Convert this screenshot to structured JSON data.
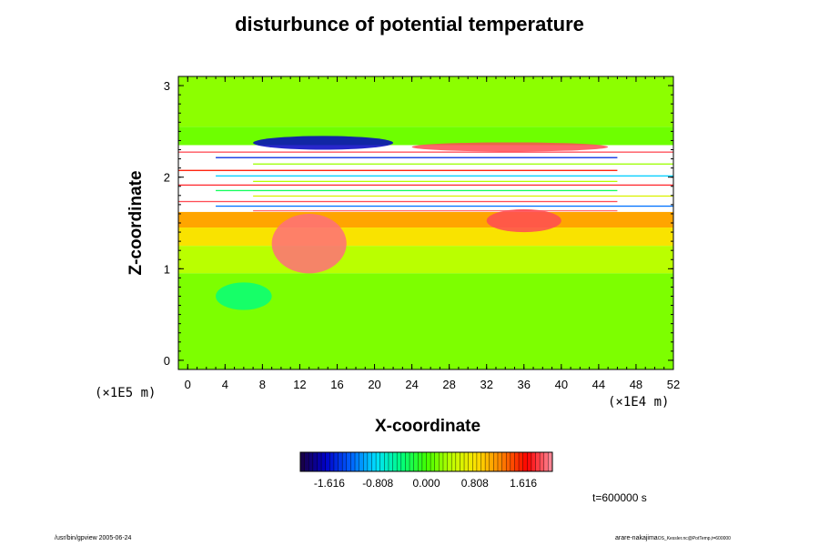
{
  "chart_data": {
    "type": "heatmap",
    "title": "disturbunce of potential temperature",
    "xlabel": "X-coordinate",
    "ylabel": "Z-coordinate",
    "x_unit": "(×1E4 m)",
    "z_unit": "(×1E5 m)",
    "xlim": [
      -1,
      52
    ],
    "ylim": [
      -0.1,
      3.1
    ],
    "x_ticks": [
      "0",
      "4",
      "8",
      "12",
      "16",
      "20",
      "24",
      "28",
      "32",
      "36",
      "40",
      "44",
      "48",
      "52"
    ],
    "y_ticks": [
      "0",
      "1",
      "2",
      "3"
    ],
    "colorbar": {
      "range": [
        -2.1,
        2.1
      ],
      "tick_labels": [
        "-1.616",
        "-0.808",
        "0.000",
        "0.808",
        "1.616"
      ],
      "tick_values": [
        -1.616,
        -0.808,
        0.0,
        0.808,
        1.616
      ]
    },
    "field_bands": [
      {
        "z": [
          2.55,
          3.1
        ],
        "value": 0.25
      },
      {
        "z": [
          2.3,
          2.55
        ],
        "value": 0.15
      },
      {
        "z": [
          1.62,
          2.35
        ],
        "value": "undefined"
      },
      {
        "z": [
          1.45,
          1.62
        ],
        "value": 1.1
      },
      {
        "z": [
          1.25,
          1.45
        ],
        "value": 0.8
      },
      {
        "z": [
          0.95,
          1.25
        ],
        "value": 0.4
      },
      {
        "z": [
          -0.1,
          0.95
        ],
        "value": 0.2
      }
    ],
    "features": [
      {
        "kind": "cold-patch",
        "x": [
          7,
          22
        ],
        "z": [
          2.3,
          2.45
        ],
        "value": -1.7
      },
      {
        "kind": "warm-layer",
        "x": [
          24,
          45
        ],
        "z": [
          2.28,
          2.38
        ],
        "value": 1.9
      },
      {
        "kind": "warm-plume",
        "x": [
          9,
          17
        ],
        "z": [
          0.95,
          1.6
        ],
        "value": 2.0
      },
      {
        "kind": "warm-patch",
        "x": [
          32,
          40
        ],
        "z": [
          1.4,
          1.65
        ],
        "value": 1.9
      },
      {
        "kind": "cool-patch",
        "x": [
          3,
          9
        ],
        "z": [
          0.55,
          0.85
        ],
        "value": -0.4
      }
    ],
    "colors": {
      "ramp": [
        "#1a0040",
        "#0000c8",
        "#0060ff",
        "#00e0ff",
        "#00ff80",
        "#40ff00",
        "#c0ff00",
        "#ffe000",
        "#ff8000",
        "#ff0000",
        "#ff90a0"
      ]
    }
  },
  "annotations": {
    "time": "t=600000 s",
    "footer_left": "/usr/bin/gpview 2005-06-24",
    "footer_right_main": "arare-nakajima",
    "footer_right_small": "OS_Kessler.nc@PotTemp,t=600000"
  }
}
